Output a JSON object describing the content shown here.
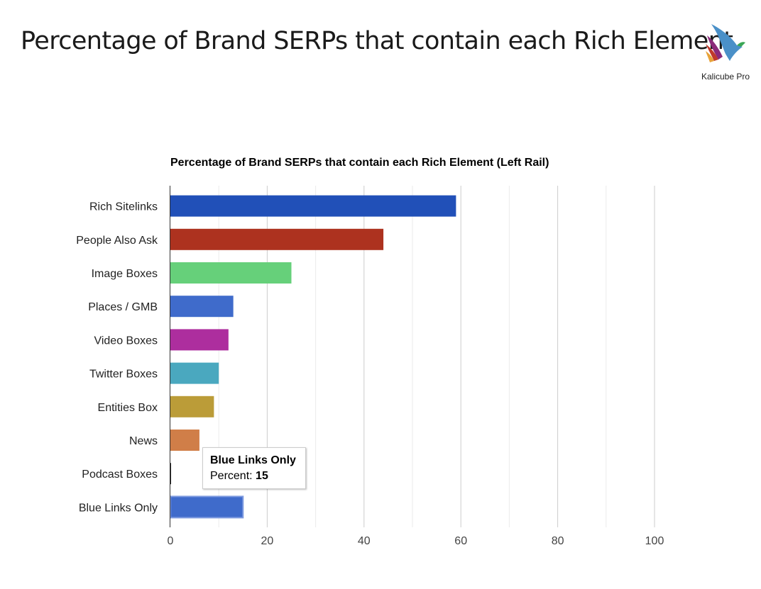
{
  "header": {
    "title": "Percentage of Brand SERPs that contain each Rich Element",
    "logo_text": "Kalicube Pro"
  },
  "chart_data": {
    "type": "bar",
    "orientation": "horizontal",
    "title": "Percentage of Brand SERPs that contain each Rich Element (Left Rail)",
    "categories": [
      "Rich Sitelinks",
      "People Also Ask",
      "Image Boxes",
      "Places / GMB",
      "Video Boxes",
      "Twitter Boxes",
      "Entities Box",
      "News",
      "Podcast Boxes",
      "Blue Links Only"
    ],
    "values": [
      59,
      44,
      25,
      13,
      12,
      10,
      9,
      6,
      0,
      15
    ],
    "colors": [
      "#2150b8",
      "#ad321f",
      "#66d07a",
      "#3f6bcb",
      "#ad2e9e",
      "#4aa8bf",
      "#bb9c38",
      "#d07e48",
      "#222222",
      "#3f6bcb"
    ],
    "xlim": [
      0,
      100
    ],
    "xticks": [
      0,
      20,
      40,
      60,
      80,
      100
    ],
    "xlabel": "",
    "ylabel": "",
    "grid": true,
    "legend": "none"
  },
  "tooltip": {
    "title": "Blue Links Only",
    "label": "Percent:",
    "value": "15"
  }
}
